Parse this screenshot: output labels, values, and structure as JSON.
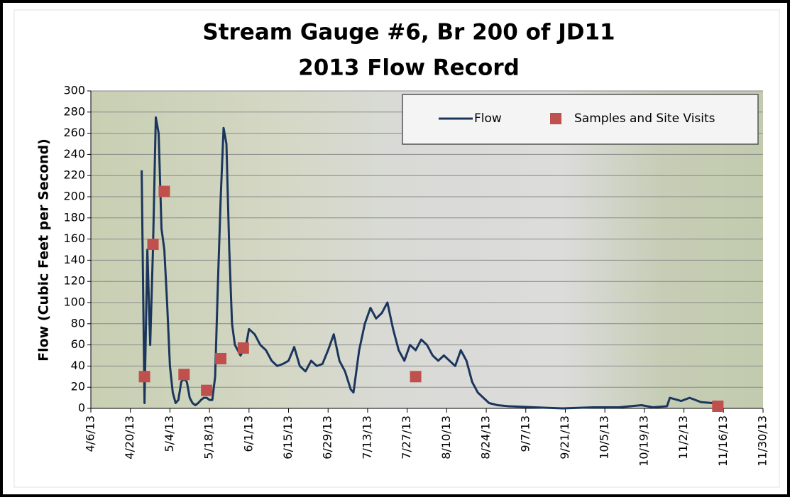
{
  "chart_data": {
    "type": "line",
    "title": "Stream Gauge #6, Br 200 of JD11",
    "subtitle": "2013 Flow Record",
    "y_label": "Flow (Cubic Feet per Second)",
    "xlim": [
      "2013-04-06",
      "2013-11-30"
    ],
    "xticks": [
      {
        "value": "2013-04-06",
        "label": "4/6/13"
      },
      {
        "value": "2013-04-20",
        "label": "4/20/13"
      },
      {
        "value": "2013-05-04",
        "label": "5/4/13"
      },
      {
        "value": "2013-05-18",
        "label": "5/18/13"
      },
      {
        "value": "2013-06-01",
        "label": "6/1/13"
      },
      {
        "value": "2013-06-15",
        "label": "6/15/13"
      },
      {
        "value": "2013-06-29",
        "label": "6/29/13"
      },
      {
        "value": "2013-07-13",
        "label": "7/13/13"
      },
      {
        "value": "2013-07-27",
        "label": "7/27/13"
      },
      {
        "value": "2013-08-10",
        "label": "8/10/13"
      },
      {
        "value": "2013-08-24",
        "label": "8/24/13"
      },
      {
        "value": "2013-09-07",
        "label": "9/7/13"
      },
      {
        "value": "2013-09-21",
        "label": "9/21/13"
      },
      {
        "value": "2013-10-05",
        "label": "10/5/13"
      },
      {
        "value": "2013-10-19",
        "label": "10/19/13"
      },
      {
        "value": "2013-11-02",
        "label": "11/2/13"
      },
      {
        "value": "2013-11-16",
        "label": "11/16/13"
      },
      {
        "value": "2013-11-30",
        "label": "11/30/13"
      }
    ],
    "ylim": [
      0,
      300
    ],
    "yticks": [
      0,
      20,
      40,
      60,
      80,
      100,
      120,
      140,
      160,
      180,
      200,
      220,
      240,
      260,
      280,
      300
    ],
    "grid": true,
    "legend": "top-right",
    "series": [
      {
        "name": "Flow",
        "mode": "line",
        "color": "#1b365d",
        "x": [
          "2013-04-24",
          "2013-04-25",
          "2013-04-26",
          "2013-04-27",
          "2013-04-28",
          "2013-04-29",
          "2013-04-30",
          "2013-05-01",
          "2013-05-02",
          "2013-05-03",
          "2013-05-04",
          "2013-05-05",
          "2013-05-06",
          "2013-05-07",
          "2013-05-08",
          "2013-05-09",
          "2013-05-10",
          "2013-05-11",
          "2013-05-12",
          "2013-05-13",
          "2013-05-14",
          "2013-05-15",
          "2013-05-16",
          "2013-05-17",
          "2013-05-18",
          "2013-05-19",
          "2013-05-20",
          "2013-05-21",
          "2013-05-22",
          "2013-05-23",
          "2013-05-24",
          "2013-05-25",
          "2013-05-26",
          "2013-05-27",
          "2013-05-28",
          "2013-05-29",
          "2013-05-30",
          "2013-05-31",
          "2013-06-01",
          "2013-06-03",
          "2013-06-05",
          "2013-06-07",
          "2013-06-09",
          "2013-06-11",
          "2013-06-13",
          "2013-06-15",
          "2013-06-17",
          "2013-06-19",
          "2013-06-21",
          "2013-06-23",
          "2013-06-25",
          "2013-06-27",
          "2013-06-29",
          "2013-07-01",
          "2013-07-03",
          "2013-07-05",
          "2013-07-07",
          "2013-07-08",
          "2013-07-10",
          "2013-07-12",
          "2013-07-14",
          "2013-07-16",
          "2013-07-18",
          "2013-07-20",
          "2013-07-22",
          "2013-07-24",
          "2013-07-26",
          "2013-07-28",
          "2013-07-30",
          "2013-08-01",
          "2013-08-03",
          "2013-08-05",
          "2013-08-07",
          "2013-08-09",
          "2013-08-11",
          "2013-08-13",
          "2013-08-15",
          "2013-08-17",
          "2013-08-19",
          "2013-08-21",
          "2013-08-23",
          "2013-08-25",
          "2013-08-28",
          "2013-09-01",
          "2013-09-10",
          "2013-09-20",
          "2013-10-01",
          "2013-10-10",
          "2013-10-18",
          "2013-10-22",
          "2013-10-27",
          "2013-10-28",
          "2013-11-01",
          "2013-11-04",
          "2013-11-08",
          "2013-11-12",
          "2013-11-14"
        ],
        "values": [
          225,
          5,
          150,
          60,
          150,
          275,
          260,
          170,
          150,
          100,
          40,
          15,
          5,
          8,
          25,
          28,
          25,
          10,
          5,
          3,
          5,
          8,
          10,
          10,
          8,
          8,
          30,
          120,
          200,
          265,
          250,
          150,
          80,
          60,
          55,
          50,
          55,
          60,
          75,
          70,
          60,
          55,
          45,
          40,
          42,
          45,
          58,
          40,
          35,
          45,
          40,
          42,
          55,
          70,
          45,
          35,
          18,
          15,
          55,
          80,
          95,
          85,
          90,
          100,
          75,
          55,
          45,
          60,
          55,
          65,
          60,
          50,
          45,
          50,
          45,
          40,
          55,
          45,
          25,
          15,
          10,
          5,
          3,
          2,
          1,
          0,
          1,
          1,
          3,
          1,
          2,
          10,
          7,
          10,
          6,
          5,
          4
        ]
      },
      {
        "name": "Samples and Site Visits",
        "mode": "markers",
        "color": "#c0504d",
        "x": [
          "2013-04-25",
          "2013-04-28",
          "2013-05-02",
          "2013-05-09",
          "2013-05-17",
          "2013-05-22",
          "2013-05-30",
          "2013-07-30",
          "2013-11-14"
        ],
        "values": [
          30,
          155,
          205,
          32,
          17,
          47,
          57,
          30,
          2
        ]
      }
    ]
  }
}
